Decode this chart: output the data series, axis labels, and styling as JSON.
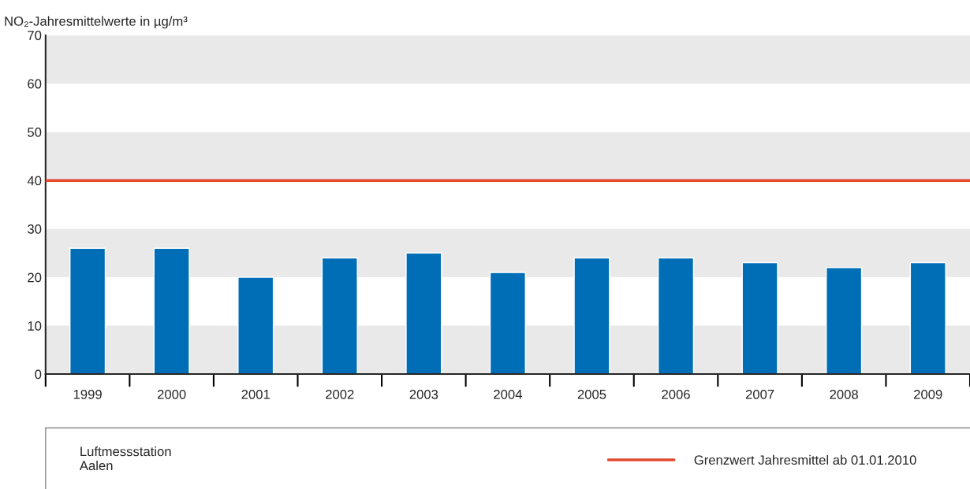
{
  "chart_data": {
    "type": "bar",
    "ylabel": "NO₂-Jahresmittelwerte in µg/m³",
    "legend_title": "Luftmessstation\nAalen",
    "categories": [
      "1999",
      "2000",
      "2001",
      "2002",
      "2003",
      "2004",
      "2005",
      "2006",
      "2007",
      "2008",
      "2009"
    ],
    "series": [
      {
        "color": "#006eb6",
        "values": [
          26,
          26,
          20,
          24,
          25,
          21,
          24,
          24,
          23,
          22,
          23
        ]
      }
    ],
    "ylim": [
      0,
      70
    ],
    "yticks": [
      0,
      10,
      20,
      30,
      40,
      50,
      60,
      70
    ],
    "ref_lines": [
      {
        "axis": "y",
        "value": 40,
        "label": "Grenzwert Jahresmittel ab 01.01.2010",
        "color": "#e4492f",
        "line_style": "solid"
      }
    ],
    "bands": [
      {
        "axis": "y",
        "from": 0,
        "to": 10,
        "color": "#e9e9e9"
      },
      {
        "axis": "y",
        "from": 20,
        "to": 30,
        "color": "#e9e9e9"
      },
      {
        "axis": "y",
        "from": 40,
        "to": 50,
        "color": "#e9e9e9"
      },
      {
        "axis": "y",
        "from": 60,
        "to": 70,
        "color": "#e9e9e9"
      }
    ],
    "legend": "bottom",
    "grid": false
  }
}
